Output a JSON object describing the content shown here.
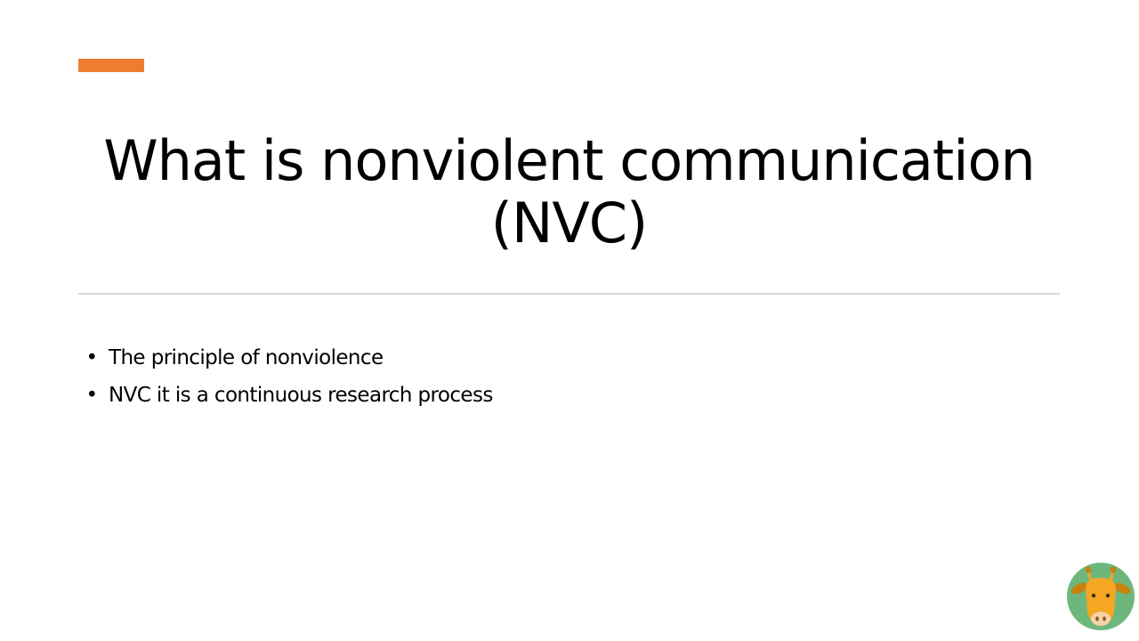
{
  "slide": {
    "title_line1": "What is nonviolent communication",
    "title_line2": "(NVC)",
    "bullet_glyph": "•",
    "bullets": [
      {
        "text": "The principle of nonviolence"
      },
      {
        "text": "NVC it is a continuous research process"
      }
    ]
  },
  "mascot": {
    "icon": "giraffe-icon"
  },
  "colors": {
    "accent": "#ED7D31",
    "divider": "#D9D9D9",
    "text": "#000000",
    "mascot_background": "#6DB77D",
    "mascot_face": "#F5A623"
  }
}
